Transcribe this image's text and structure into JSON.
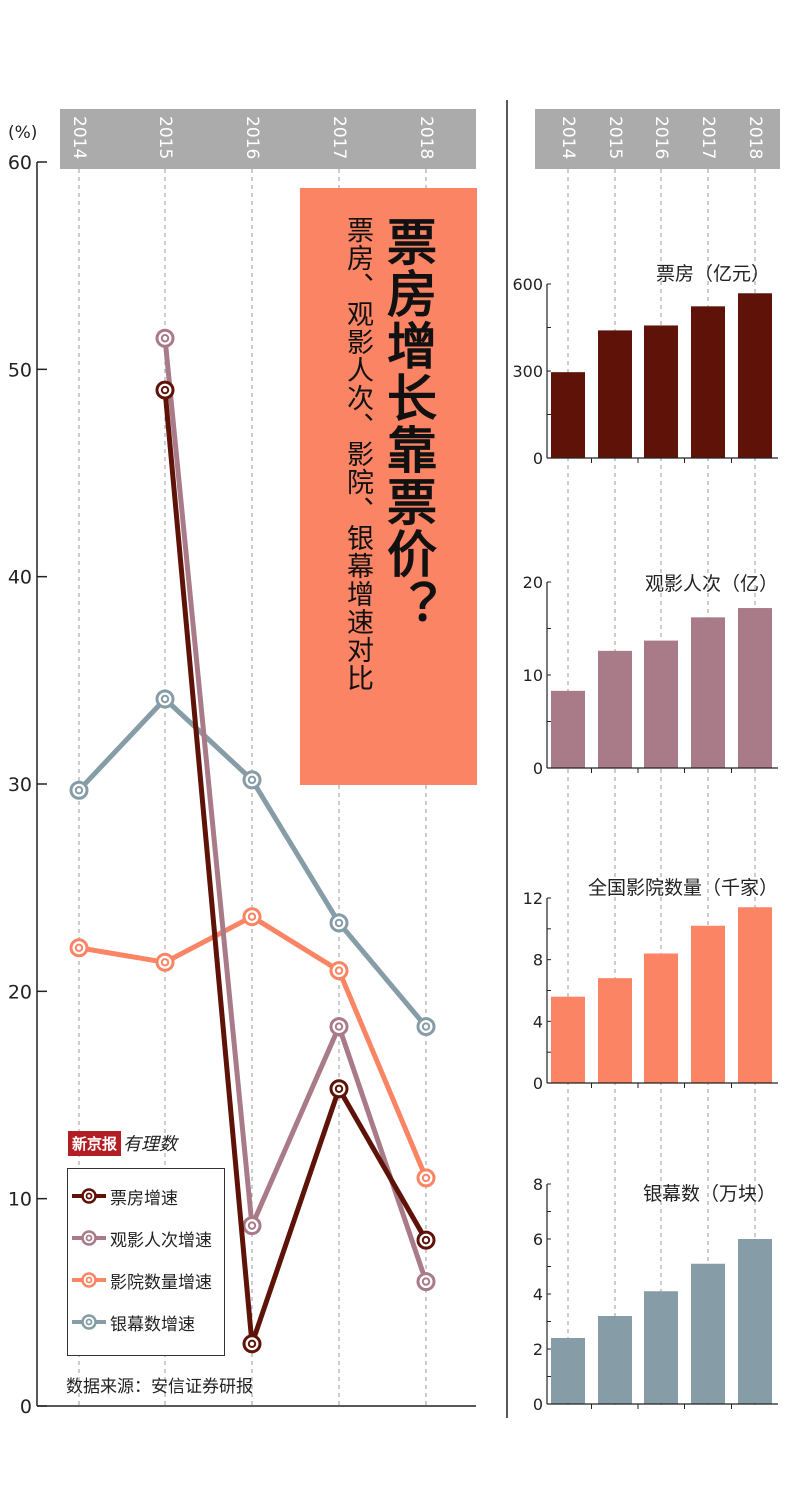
{
  "title": "票房增长靠票价？",
  "subtitle": "票房、观影人次、影院、银幕增速对比",
  "logo": {
    "text_red": "新京报",
    "text_script": "有理数"
  },
  "source": "数据来源：安信证券研报",
  "colors": {
    "box_office": "#5e1208",
    "attendance": "#a97b89",
    "cinemas": "#fb8464",
    "screens": "#869ca6",
    "header": "#ababab",
    "title_bg": "#fb8464"
  },
  "chart_data": [
    {
      "type": "line",
      "x": [
        "2014",
        "2015",
        "2016",
        "2017",
        "2018"
      ],
      "ylabel": "(%)",
      "ylim": [
        0,
        60
      ],
      "yticks": [
        0,
        10,
        20,
        30,
        40,
        50,
        60
      ],
      "series": [
        {
          "name": "票房增速",
          "color_key": "box_office",
          "values": [
            null,
            49.0,
            3.0,
            15.3,
            8.0
          ]
        },
        {
          "name": "观影人次增速",
          "color_key": "attendance",
          "values": [
            null,
            51.5,
            8.7,
            18.3,
            6.0
          ]
        },
        {
          "name": "影院数量增速",
          "color_key": "cinemas",
          "values": [
            22.1,
            21.4,
            23.6,
            21.0,
            11.0
          ]
        },
        {
          "name": "银幕数增速",
          "color_key": "screens",
          "values": [
            29.7,
            34.1,
            30.2,
            23.3,
            18.3
          ]
        }
      ]
    },
    {
      "type": "bar",
      "title": "票房（亿元）",
      "color_key": "box_office",
      "categories": [
        "2014",
        "2015",
        "2016",
        "2017",
        "2018"
      ],
      "values": [
        296,
        440,
        457,
        523,
        568
      ],
      "ylim": [
        0,
        600
      ],
      "yticks": [
        0,
        300,
        600
      ]
    },
    {
      "type": "bar",
      "title": "观影人次（亿）",
      "color_key": "attendance",
      "categories": [
        "2014",
        "2015",
        "2016",
        "2017",
        "2018"
      ],
      "values": [
        8.3,
        12.6,
        13.7,
        16.2,
        17.2
      ],
      "ylim": [
        0,
        20
      ],
      "yticks": [
        0,
        10,
        20
      ]
    },
    {
      "type": "bar",
      "title": "全国影院数量（千家）",
      "color_key": "cinemas",
      "categories": [
        "2014",
        "2015",
        "2016",
        "2017",
        "2018"
      ],
      "values": [
        5.6,
        6.8,
        8.4,
        10.2,
        11.4
      ],
      "ylim": [
        0,
        12
      ],
      "yticks": [
        0,
        4,
        8,
        12
      ]
    },
    {
      "type": "bar",
      "title": "银幕数（万块）",
      "color_key": "screens",
      "categories": [
        "2014",
        "2015",
        "2016",
        "2017",
        "2018"
      ],
      "values": [
        2.4,
        3.2,
        4.1,
        5.1,
        6.0
      ],
      "ylim": [
        0,
        8
      ],
      "yticks": [
        0,
        2,
        4,
        6,
        8
      ]
    }
  ]
}
